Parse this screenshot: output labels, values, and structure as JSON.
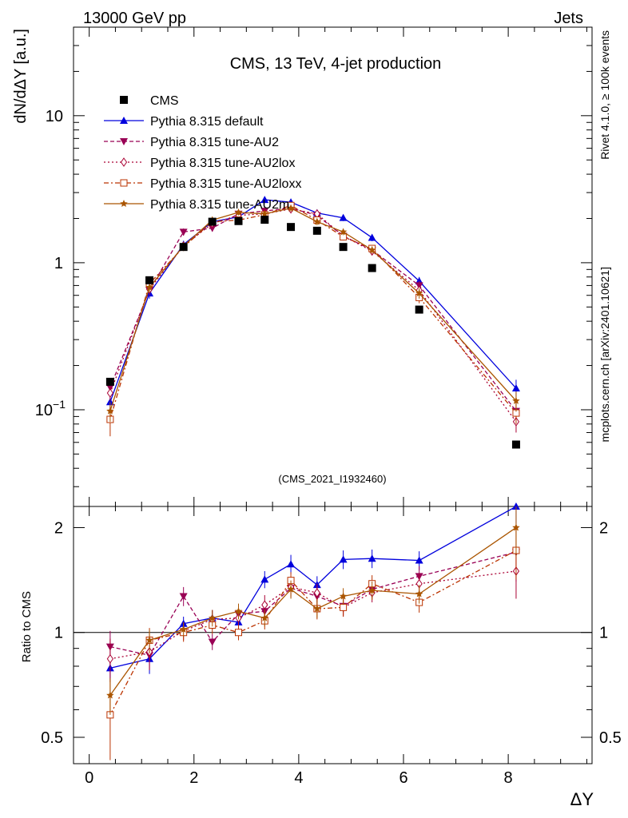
{
  "header": {
    "left": "13000 GeV pp",
    "right": "Jets"
  },
  "side": {
    "rivet": "Rivet 4.1.0, ≥ 100k events",
    "mcplots": "mcplots.cern.ch [arXiv:2401.10621]"
  },
  "chart_data": {
    "type": "line",
    "title": "CMS, 13 TeV, 4-jet production",
    "analysis_id": "(CMS_2021_I1932460)",
    "xlabel": "ΔY",
    "ylabel": "dN/dΔY [a.u.]",
    "ratio_ylabel": "Ratio to CMS",
    "xlim": [
      -0.3,
      9.6
    ],
    "ylim": [
      0.022,
      40
    ],
    "yscale": "log",
    "ratio_ylim": [
      0.42,
      2.3
    ],
    "x_ticks": [
      "0",
      "2",
      "4",
      "6",
      "8"
    ],
    "y_ticks": [
      {
        "value": 0.1,
        "label": "10",
        "exp": "−1"
      },
      {
        "value": 1,
        "label": "1",
        "exp": ""
      },
      {
        "value": 10,
        "label": "10",
        "exp": ""
      }
    ],
    "ratio_ticks": [
      "0.5",
      "1",
      "2"
    ],
    "x": [
      0.4,
      1.15,
      1.8,
      2.35,
      2.85,
      3.35,
      3.85,
      4.35,
      4.85,
      5.4,
      6.3,
      8.15
    ],
    "data": {
      "name": "CMS",
      "values": [
        0.155,
        0.76,
        1.28,
        1.9,
        1.92,
        1.96,
        1.75,
        1.65,
        1.28,
        0.92,
        0.48,
        0.058
      ]
    },
    "series": [
      {
        "name": "Pythia 8.315 default",
        "color": "#0000dd",
        "dash": "",
        "marker": "triangle",
        "values": [
          0.113,
          0.62,
          1.33,
          1.9,
          2.05,
          2.68,
          2.58,
          2.18,
          2.02,
          1.48,
          0.75,
          0.14
        ],
        "errors": [
          0.012,
          0.05,
          0.08,
          0.1,
          0.1,
          0.12,
          0.12,
          0.1,
          0.1,
          0.08,
          0.05,
          0.02
        ],
        "ratio": [
          0.79,
          0.84,
          1.06,
          1.1,
          1.07,
          1.42,
          1.57,
          1.37,
          1.62,
          1.63,
          1.61,
          2.35
        ],
        "ratio_err": [
          0.06,
          0.08,
          0.05,
          0.06,
          0.05,
          0.08,
          0.1,
          0.08,
          0.1,
          0.1,
          0.1,
          0.3
        ]
      },
      {
        "name": "Pythia 8.315 tune-AU2",
        "color": "#990055",
        "dash": "5,3",
        "marker": "triangle-down",
        "values": [
          0.142,
          0.65,
          1.62,
          1.72,
          2.15,
          2.25,
          2.35,
          2.1,
          1.52,
          1.22,
          0.7,
          0.098
        ],
        "errors": [
          0.015,
          0.05,
          0.09,
          0.09,
          0.1,
          0.1,
          0.12,
          0.1,
          0.08,
          0.07,
          0.05,
          0.015
        ],
        "ratio": [
          0.91,
          0.86,
          1.27,
          0.94,
          1.13,
          1.15,
          1.34,
          1.27,
          1.19,
          1.33,
          1.45,
          1.7
        ],
        "ratio_err": [
          0.1,
          0.08,
          0.08,
          0.05,
          0.06,
          0.06,
          0.08,
          0.08,
          0.07,
          0.08,
          0.1,
          0.3
        ]
      },
      {
        "name": "Pythia 8.315 tune-AU2lox",
        "color": "#aa0033",
        "dash": "2,3",
        "marker": "diamond",
        "values": [
          0.13,
          0.66,
          1.3,
          1.85,
          2.1,
          2.15,
          2.32,
          2.15,
          1.52,
          1.2,
          0.65,
          0.083
        ],
        "errors": [
          0.015,
          0.05,
          0.08,
          0.1,
          0.1,
          0.1,
          0.12,
          0.1,
          0.08,
          0.07,
          0.05,
          0.013
        ],
        "ratio": [
          0.84,
          0.88,
          1.01,
          1.09,
          1.1,
          1.2,
          1.35,
          1.3,
          1.18,
          1.3,
          1.38,
          1.5
        ],
        "ratio_err": [
          0.12,
          0.1,
          0.06,
          0.07,
          0.06,
          0.08,
          0.08,
          0.08,
          0.07,
          0.08,
          0.1,
          0.25
        ]
      },
      {
        "name": "Pythia 8.315 tune-AU2loxx",
        "color": "#bb3300",
        "dash": "6,3,2,3",
        "marker": "square-open",
        "values": [
          0.086,
          0.72,
          1.28,
          1.9,
          1.95,
          2.12,
          2.45,
          1.95,
          1.5,
          1.25,
          0.58,
          0.095
        ],
        "errors": [
          0.02,
          0.05,
          0.08,
          0.1,
          0.1,
          0.1,
          0.12,
          0.1,
          0.08,
          0.07,
          0.05,
          0.015
        ],
        "ratio": [
          0.58,
          0.95,
          1.0,
          1.05,
          1.0,
          1.08,
          1.41,
          1.17,
          1.18,
          1.38,
          1.22,
          1.72
        ],
        "ratio_err": [
          0.15,
          0.08,
          0.06,
          0.06,
          0.05,
          0.06,
          0.08,
          0.08,
          0.07,
          0.08,
          0.08,
          0.3
        ]
      },
      {
        "name": "Pythia 8.315 tune-AU2m",
        "color": "#aa5500",
        "dash": "",
        "marker": "star",
        "values": [
          0.098,
          0.68,
          1.3,
          1.95,
          2.2,
          2.15,
          2.35,
          1.9,
          1.62,
          1.22,
          0.62,
          0.115
        ],
        "errors": [
          0.015,
          0.05,
          0.08,
          0.1,
          0.1,
          0.1,
          0.12,
          0.1,
          0.08,
          0.07,
          0.05,
          0.018
        ],
        "ratio": [
          0.66,
          0.95,
          1.02,
          1.1,
          1.15,
          1.1,
          1.33,
          1.17,
          1.27,
          1.32,
          1.29,
          2.0
        ],
        "ratio_err": [
          0.08,
          0.07,
          0.05,
          0.06,
          0.06,
          0.06,
          0.08,
          0.07,
          0.07,
          0.08,
          0.08,
          0.35
        ]
      }
    ]
  }
}
